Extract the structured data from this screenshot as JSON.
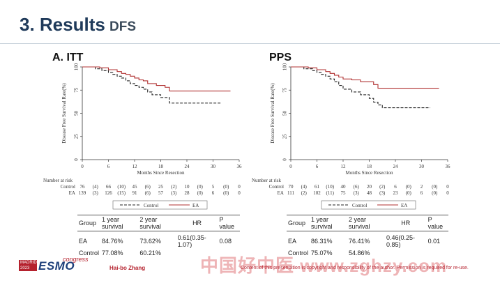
{
  "slide": {
    "title": "3. Results",
    "subtitle": "DFS"
  },
  "panels": [
    {
      "label": "A.  ITT",
      "stats": {
        "headers": [
          "Group",
          "1 year survival",
          "2 year survival",
          "HR",
          "P value"
        ],
        "rows": [
          [
            "EA",
            "84.76%",
            "73.62%",
            "0.61(0.35-1.07)",
            "0.08"
          ],
          [
            "Control",
            "77.08%",
            "60.21%",
            "",
            ""
          ]
        ]
      }
    },
    {
      "label": "PPS",
      "stats": {
        "headers": [
          "Group",
          "1 year survival",
          "2 year survival",
          "HR",
          "P value"
        ],
        "rows": [
          [
            "EA",
            "86.31%",
            "76.41%",
            "0.46(0.25-0.85)",
            "0.01"
          ],
          [
            "Control",
            "75.07%",
            "54.86%",
            "",
            ""
          ]
        ]
      }
    }
  ],
  "chart_data": [
    {
      "type": "line",
      "title": "A.  ITT",
      "xlabel": "Months Since Resection",
      "ylabel": "Disease Free Survival Rate(%)",
      "xlim": [
        0,
        36
      ],
      "ylim": [
        0,
        100
      ],
      "xticks": [
        0,
        6,
        12,
        18,
        24,
        30,
        36
      ],
      "yticks": [
        0,
        25,
        50,
        75,
        100
      ],
      "legend": "bottom",
      "series": [
        {
          "name": "Control",
          "color": "#222222",
          "dash": "dashed",
          "x": [
            0,
            3,
            4.5,
            6,
            7,
            8,
            9,
            10,
            11,
            12,
            13,
            14,
            15,
            16,
            18,
            20,
            24,
            30,
            32
          ],
          "y": [
            100,
            98,
            96,
            94,
            92,
            90,
            88,
            85,
            82,
            80,
            78,
            76,
            73,
            70,
            67,
            61,
            61,
            61,
            61
          ]
        },
        {
          "name": "EA",
          "color": "#b03030",
          "dash": "solid",
          "x": [
            0,
            4,
            6,
            8,
            9,
            10,
            11,
            12,
            13,
            14,
            15,
            17,
            19,
            20,
            24,
            30,
            34
          ],
          "y": [
            100,
            99,
            97,
            95,
            93,
            92,
            90,
            88,
            86,
            85,
            82,
            80,
            78,
            74,
            74,
            74,
            74
          ]
        }
      ],
      "risk_table": {
        "title": "Number at risk",
        "rows": [
          {
            "group": "Control",
            "cells": [
              "76",
              "(4)",
              "66",
              "(10)",
              "45",
              "(6)",
              "25",
              "(2)",
              "10",
              "(0)",
              "5",
              "(0)",
              "0"
            ]
          },
          {
            "group": "EA",
            "cells": [
              "139",
              "(3)",
              "126",
              "(15)",
              "91",
              "(6)",
              "57",
              "(3)",
              "28",
              "(0)",
              "6",
              "(0)",
              "0"
            ]
          }
        ]
      }
    },
    {
      "type": "line",
      "title": "PPS",
      "xlabel": "Months Since Resection",
      "ylabel": "Disease Free Survival Rate(%)",
      "xlim": [
        0,
        36
      ],
      "ylim": [
        0,
        100
      ],
      "xticks": [
        0,
        6,
        12,
        18,
        24,
        30,
        36
      ],
      "yticks": [
        0,
        25,
        50,
        75,
        100
      ],
      "legend": "bottom",
      "series": [
        {
          "name": "Control",
          "color": "#222222",
          "dash": "dashed",
          "x": [
            0,
            3,
            5,
            6,
            7,
            8,
            9,
            10,
            11,
            12,
            14,
            16,
            18,
            19,
            20,
            21,
            24,
            30,
            32
          ],
          "y": [
            100,
            98,
            96,
            94,
            92,
            90,
            87,
            84,
            80,
            76,
            73,
            70,
            66,
            62,
            59,
            56,
            56,
            56,
            56
          ]
        },
        {
          "name": "EA",
          "color": "#b03030",
          "dash": "solid",
          "x": [
            0,
            4,
            6,
            8,
            9,
            10,
            11,
            12,
            14,
            16,
            18,
            19,
            20,
            24,
            30,
            34
          ],
          "y": [
            100,
            99,
            97,
            95,
            93,
            91,
            89,
            87,
            86,
            84,
            84,
            81,
            77,
            77,
            77,
            77
          ]
        }
      ],
      "risk_table": {
        "title": "Number at risk",
        "rows": [
          {
            "group": "Control",
            "cells": [
              "70",
              "(4)",
              "61",
              "(10)",
              "40",
              "(6)",
              "20",
              "(2)",
              "6",
              "(0)",
              "2",
              "(0)",
              "0"
            ]
          },
          {
            "group": "EA",
            "cells": [
              "111",
              "(2)",
              "102",
              "(11)",
              "75",
              "(3)",
              "48",
              "(3)",
              "23",
              "(0)",
              "6",
              "(0)",
              "0"
            ]
          }
        ]
      }
    }
  ],
  "footer": {
    "logo_year": "MADRID 2023",
    "logo_text": "ESMO",
    "logo_suffix": "congress",
    "presenter": "Hai-bo Zhang",
    "watermark": "中国好中医 www.zghzy.com",
    "disclaimer": "Content of this presentation is copyright and responsibility of the author. Permission is required for re-use."
  }
}
